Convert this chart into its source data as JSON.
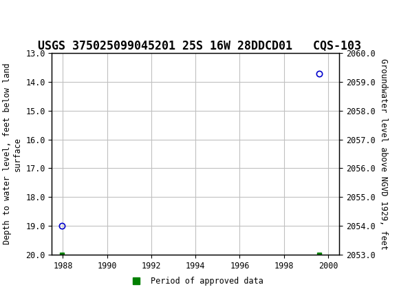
{
  "title": "USGS 375025099045201 25S 16W 28DDCD01   CQS-103",
  "ylabel_left": "Depth to water level, feet below land\nsurface",
  "ylabel_right": "Groundwater level above NGVD 1929, feet",
  "xlim": [
    1987.5,
    2000.5
  ],
  "ylim_left": [
    20.0,
    13.0
  ],
  "ylim_right": [
    2053.0,
    2060.0
  ],
  "yticks_left": [
    13.0,
    14.0,
    15.0,
    16.0,
    17.0,
    18.0,
    19.0,
    20.0
  ],
  "yticks_right": [
    2053.0,
    2054.0,
    2055.0,
    2056.0,
    2057.0,
    2058.0,
    2059.0,
    2060.0
  ],
  "xticks": [
    1988,
    1990,
    1992,
    1994,
    1996,
    1998,
    2000
  ],
  "data_points": [
    {
      "x": 1987.95,
      "y_left": 19.0,
      "color": "#0000cc"
    },
    {
      "x": 1999.6,
      "y_left": 13.7,
      "color": "#0000cc"
    }
  ],
  "green_marks": [
    {
      "x": 1987.95,
      "y_left": 20.0
    },
    {
      "x": 1999.6,
      "y_left": 20.0
    }
  ],
  "grid_color": "#c0c0c0",
  "background_color": "#ffffff",
  "header_bg_color": "#1a6b3c",
  "title_fontsize": 12,
  "tick_fontsize": 8.5,
  "legend_label": "Period of approved data",
  "legend_color": "#008000"
}
